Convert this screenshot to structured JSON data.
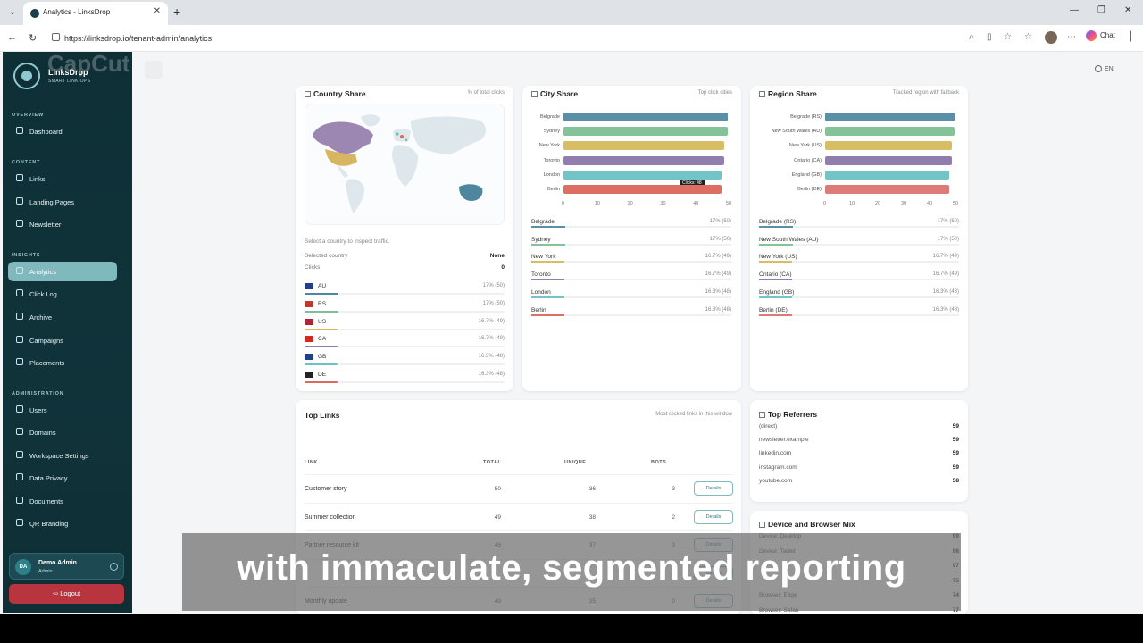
{
  "browser": {
    "tab_title": "Analytics - LinksDrop",
    "url": "https://linksdrop.io/tenant-admin/analytics",
    "chat_label": "Chat"
  },
  "app": {
    "brand": "LinksDrop",
    "tagline": "SMART LINK OPS",
    "watermark": "CapCut",
    "lang": "EN"
  },
  "sidebar": {
    "sections": [
      {
        "heading": "OVERVIEW",
        "items": [
          {
            "label": "Dashboard",
            "icon": "dashboard-icon"
          }
        ]
      },
      {
        "heading": "CONTENT",
        "items": [
          {
            "label": "Links",
            "icon": "link-icon"
          },
          {
            "label": "Landing Pages",
            "icon": "page-icon"
          },
          {
            "label": "Newsletter",
            "icon": "mail-icon"
          }
        ]
      },
      {
        "heading": "INSIGHTS",
        "items": [
          {
            "label": "Analytics",
            "icon": "chart-icon",
            "active": true
          },
          {
            "label": "Click Log",
            "icon": "log-icon"
          },
          {
            "label": "Archive",
            "icon": "archive-icon"
          },
          {
            "label": "Campaigns",
            "icon": "megaphone-icon"
          },
          {
            "label": "Placements",
            "icon": "tag-icon"
          }
        ]
      },
      {
        "heading": "ADMINISTRATION",
        "items": [
          {
            "label": "Users",
            "icon": "users-icon"
          },
          {
            "label": "Domains",
            "icon": "globe-icon"
          },
          {
            "label": "Workspace Settings",
            "icon": "settings-icon"
          },
          {
            "label": "Data Privacy",
            "icon": "shield-icon"
          },
          {
            "label": "Documents",
            "icon": "document-icon"
          },
          {
            "label": "QR Branding",
            "icon": "qr-icon"
          }
        ]
      }
    ],
    "user": {
      "initials": "DA",
      "name": "Demo Admin",
      "role": "Admin"
    },
    "logout": "Logout"
  },
  "country_share": {
    "title": "Country Share",
    "subtitle": "% of total clicks",
    "hint": "Select a country to inspect traffic.",
    "selected_label": "Selected country",
    "selected_value": "None",
    "clicks_label": "Clicks",
    "clicks_value": "0",
    "rows": [
      {
        "code": "AU",
        "pct": "17% (50)",
        "share": 0.17,
        "color": "#4e86a0"
      },
      {
        "code": "RS",
        "pct": "17% (50)",
        "share": 0.17,
        "color": "#7fbf96"
      },
      {
        "code": "US",
        "pct": "16.7% (49)",
        "share": 0.167,
        "color": "#d9b95c"
      },
      {
        "code": "CA",
        "pct": "16.7% (49)",
        "share": 0.167,
        "color": "#8f7bab"
      },
      {
        "code": "GB",
        "pct": "16.3% (48)",
        "share": 0.163,
        "color": "#6cc1c4"
      },
      {
        "code": "DE",
        "pct": "16.3% (48)",
        "share": 0.163,
        "color": "#d96a5d"
      }
    ]
  },
  "city_share": {
    "title": "City Share",
    "subtitle": "Top click cities",
    "tooltip_title": "Berlin",
    "tooltip_value": "Clicks: 48",
    "axis_ticks": [
      "0",
      "10",
      "20",
      "30",
      "40",
      "50"
    ],
    "rows": [
      {
        "name": "Belgrade",
        "value": 50,
        "pct": "17% (50)",
        "color": "#5b8fa8"
      },
      {
        "name": "Sydney",
        "value": 50,
        "pct": "17% (50)",
        "color": "#84c29a"
      },
      {
        "name": "New York",
        "value": 49,
        "pct": "16.7% (49)",
        "color": "#d7bd63"
      },
      {
        "name": "Toronto",
        "value": 49,
        "pct": "16.7% (49)",
        "color": "#927eae"
      },
      {
        "name": "London",
        "value": 48,
        "pct": "16.3% (48)",
        "color": "#72c4c6"
      },
      {
        "name": "Berlin",
        "value": 48,
        "pct": "16.3% (48)",
        "color": "#dc6f62"
      }
    ]
  },
  "region_share": {
    "title": "Region Share",
    "subtitle": "Tracked region with fallback",
    "axis_ticks": [
      "0",
      "10",
      "20",
      "30",
      "40",
      "50"
    ],
    "rows": [
      {
        "name": "Belgrade (RS)",
        "value": 50,
        "pct": "17% (50)",
        "color": "#5b8fa8"
      },
      {
        "name": "New South Wales (AU)",
        "value": 50,
        "pct": "17% (50)",
        "color": "#84c29a"
      },
      {
        "name": "New York (US)",
        "value": 49,
        "pct": "16.7% (49)",
        "color": "#d7bd63"
      },
      {
        "name": "Ontario (CA)",
        "value": 49,
        "pct": "16.7% (49)",
        "color": "#927eae"
      },
      {
        "name": "England (GB)",
        "value": 48,
        "pct": "16.3% (48)",
        "color": "#72c4c6"
      },
      {
        "name": "Berlin (DE)",
        "value": 48,
        "pct": "16.3% (48)",
        "color": "#dc7b78"
      }
    ]
  },
  "top_links": {
    "title": "Top Links",
    "subtitle": "Most clicked links in this window",
    "columns": {
      "link": "LINK",
      "total": "TOTAL",
      "unique": "UNIQUE",
      "bots": "BOTS"
    },
    "details_label": "Details",
    "rows": [
      {
        "name": "Customer story",
        "total": "50",
        "unique": "36",
        "bots": "3"
      },
      {
        "name": "Summer collection",
        "total": "49",
        "unique": "38",
        "bots": "2"
      },
      {
        "name": "Partner resource kit",
        "total": "48",
        "unique": "37",
        "bots": "3"
      },
      {
        "name": "",
        "total": "",
        "unique": "",
        "bots": ""
      },
      {
        "name": "Monthly update",
        "total": "49",
        "unique": "35",
        "bots": "0"
      }
    ]
  },
  "top_referrers": {
    "title": "Top Referrers",
    "rows": [
      {
        "name": "(direct)",
        "value": "59"
      },
      {
        "name": "newsletter.example",
        "value": "59"
      },
      {
        "name": "linkedin.com",
        "value": "59"
      },
      {
        "name": "instagram.com",
        "value": "59"
      },
      {
        "name": "youtube.com",
        "value": "58"
      }
    ]
  },
  "device_mix": {
    "title": "Device and Browser Mix",
    "rows": [
      {
        "name": "Device: Desktop",
        "value": "99"
      },
      {
        "name": "Device: Tablet",
        "value": "96"
      },
      {
        "name": "",
        "value": "97"
      },
      {
        "name": "",
        "value": "75"
      },
      {
        "name": "Browser: Edge",
        "value": "74"
      },
      {
        "name": "Browser: Safari",
        "value": "77"
      }
    ]
  },
  "caption": "with immaculate, segmented reporting"
}
